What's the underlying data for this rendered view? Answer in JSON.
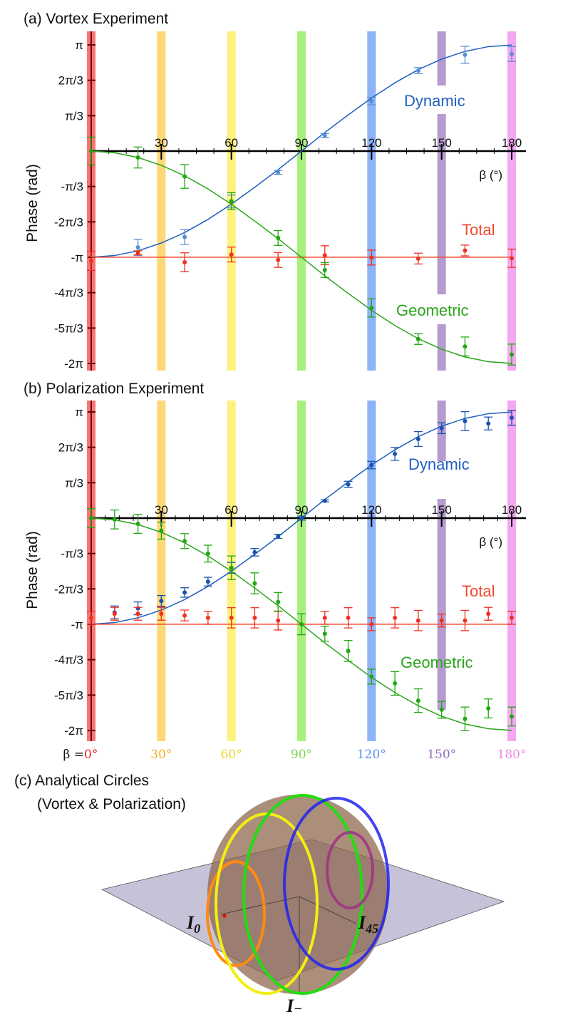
{
  "chart_data": [
    {
      "type": "scatter",
      "title": "(a) Vortex Experiment",
      "xlabel": "β (°)",
      "ylabel": "Phase (rad)",
      "xlim": [
        0,
        180
      ],
      "ylim": [
        -6.2832,
        3.1416
      ],
      "x_ticks": [
        30,
        60,
        90,
        120,
        150,
        180
      ],
      "x_tick_labels": [
        "30",
        "60",
        "90",
        "120",
        "150",
        "180"
      ],
      "minor_tick_step": 7.5,
      "y_ticks": [
        3.1416,
        2.0944,
        1.0472,
        -1.0472,
        -2.0944,
        -3.1416,
        -4.1888,
        -5.236,
        -6.2832
      ],
      "y_tick_labels": [
        "π",
        "2π/3",
        "π/3",
        "-π/3",
        "-2π/3",
        "-π",
        "-4π/3",
        "-5π/3",
        "-2π"
      ],
      "series": [
        {
          "name": "Dynamic",
          "color": "#5a8ed2",
          "line_color": "#1f5fbf",
          "x": [
            20,
            40,
            60,
            80,
            100,
            120,
            140,
            160,
            180
          ],
          "y": [
            -2.85,
            -2.54,
            -1.49,
            -0.63,
            0.46,
            1.48,
            2.38,
            2.85,
            2.87
          ],
          "err": [
            0.24,
            0.22,
            0.19,
            0.06,
            0.06,
            0.11,
            0.09,
            0.25,
            0.22
          ]
        },
        {
          "name": "Total",
          "color": "#f03020",
          "line_color": "#f04a30",
          "x": [
            0,
            20,
            40,
            60,
            80,
            100,
            120,
            140,
            160,
            180
          ],
          "y": [
            -3.25,
            -3.01,
            -3.29,
            -3.06,
            -3.22,
            -3.08,
            -3.15,
            -3.18,
            -2.94,
            -3.17
          ],
          "err": [
            0.28,
            0.06,
            0.28,
            0.22,
            0.22,
            0.28,
            0.22,
            0.16,
            0.16,
            0.27
          ]
        },
        {
          "name": "Geometric",
          "color": "#1fa80f",
          "line_color": "#2aa51a",
          "x": [
            0,
            20,
            40,
            60,
            80,
            100,
            120,
            140,
            160,
            180
          ],
          "y": [
            0,
            -0.19,
            -0.75,
            -1.48,
            -2.57,
            -3.52,
            -4.64,
            -5.56,
            -5.78,
            -6.02
          ],
          "err": [
            0.41,
            0.31,
            0.35,
            0.25,
            0.22,
            0.22,
            0.27,
            0.16,
            0.28,
            0.31
          ]
        }
      ],
      "fit_curves": {
        "x": [
          0,
          10,
          20,
          30,
          40,
          50,
          60,
          70,
          80,
          90,
          100,
          110,
          120,
          130,
          140,
          150,
          160,
          170,
          180
        ],
        "Dynamic": [
          -3.14,
          -3.09,
          -2.95,
          -2.72,
          -2.41,
          -2.02,
          -1.57,
          -1.07,
          -0.55,
          0,
          0.55,
          1.07,
          1.57,
          2.02,
          2.41,
          2.72,
          2.95,
          3.09,
          3.14
        ],
        "Total": [
          -3.14,
          -3.14,
          -3.14,
          -3.14,
          -3.14,
          -3.14,
          -3.14,
          -3.14,
          -3.14,
          -3.14,
          -3.14,
          -3.14,
          -3.14,
          -3.14,
          -3.14,
          -3.14,
          -3.14,
          -3.14,
          -3.14
        ],
        "Geometric": [
          0,
          -0.05,
          -0.19,
          -0.42,
          -0.73,
          -1.12,
          -1.57,
          -2.07,
          -2.59,
          -3.14,
          -3.69,
          -4.21,
          -4.71,
          -5.16,
          -5.55,
          -5.86,
          -6.09,
          -6.23,
          -6.28
        ]
      }
    },
    {
      "type": "scatter",
      "title": "(b) Polarization Experiment",
      "xlabel": "β (°)",
      "ylabel": "Phase (rad)",
      "xlim": [
        0,
        180
      ],
      "ylim": [
        -6.2832,
        3.1416
      ],
      "x_ticks": [
        30,
        60,
        90,
        120,
        150,
        180
      ],
      "x_tick_labels": [
        "30",
        "60",
        "90",
        "120",
        "150",
        "180"
      ],
      "minor_tick_step": 6,
      "y_ticks": [
        3.1416,
        2.0944,
        1.0472,
        -1.0472,
        -2.0944,
        -3.1416,
        -4.1888,
        -5.236,
        -6.2832
      ],
      "y_tick_labels": [
        "π",
        "2π/3",
        "π/3",
        "-π/3",
        "-2π/3",
        "-π",
        "-4π/3",
        "-5π/3",
        "-2π"
      ],
      "series": [
        {
          "name": "Dynamic",
          "color": "#1a52ad",
          "line_color": "#1f5fbf",
          "x": [
            10,
            20,
            30,
            40,
            50,
            60,
            70,
            80,
            90,
            100,
            110,
            120,
            130,
            140,
            150,
            160,
            170,
            180
          ],
          "y": [
            -2.79,
            -2.67,
            -2.45,
            -2.2,
            -1.88,
            -1.47,
            -1.01,
            -0.54,
            0,
            0.51,
            1.0,
            1.57,
            1.9,
            2.34,
            2.66,
            2.87,
            2.8,
            2.97
          ],
          "err": [
            0.19,
            0.19,
            0.16,
            0.14,
            0.13,
            0.16,
            0.11,
            0.06,
            0.06,
            0.03,
            0.09,
            0.11,
            0.19,
            0.22,
            0.16,
            0.28,
            0.19,
            0.22
          ]
        },
        {
          "name": "Total",
          "color": "#f03020",
          "line_color": "#f04a30",
          "x": [
            0,
            10,
            20,
            30,
            40,
            50,
            60,
            70,
            80,
            100,
            110,
            120,
            130,
            140,
            150,
            160,
            170,
            180
          ],
          "y": [
            -2.95,
            -2.83,
            -2.83,
            -2.83,
            -2.88,
            -2.95,
            -2.95,
            -2.95,
            -3.03,
            -2.95,
            -2.95,
            -3.14,
            -2.95,
            -3.03,
            -3.03,
            -3.03,
            -2.83,
            -2.95
          ],
          "err": [
            0.19,
            0.19,
            0.19,
            0.19,
            0.16,
            0.19,
            0.3,
            0.3,
            0.28,
            0.19,
            0.3,
            0.19,
            0.3,
            0.3,
            0.19,
            0.3,
            0.19,
            0.19
          ]
        },
        {
          "name": "Geometric",
          "color": "#1fa80f",
          "line_color": "#2aa51a",
          "x": [
            0,
            10,
            20,
            30,
            40,
            50,
            60,
            70,
            80,
            90,
            100,
            110,
            120,
            130,
            140,
            150,
            160,
            170,
            180
          ],
          "y": [
            0,
            -0.04,
            -0.17,
            -0.37,
            -0.68,
            -1.05,
            -1.47,
            -1.93,
            -2.48,
            -3.14,
            -3.42,
            -3.93,
            -4.69,
            -4.89,
            -5.4,
            -5.67,
            -5.94,
            -5.63,
            -5.87
          ],
          "err": [
            0.28,
            0.28,
            0.28,
            0.25,
            0.22,
            0.25,
            0.35,
            0.31,
            0.28,
            0.31,
            0.22,
            0.31,
            0.22,
            0.35,
            0.35,
            0.25,
            0.35,
            0.28,
            0.28
          ]
        }
      ],
      "fit_curves": {
        "x": [
          0,
          10,
          20,
          30,
          40,
          50,
          60,
          70,
          80,
          90,
          100,
          110,
          120,
          130,
          140,
          150,
          160,
          170,
          180
        ],
        "Dynamic": [
          -3.14,
          -3.09,
          -2.95,
          -2.72,
          -2.41,
          -2.02,
          -1.57,
          -1.07,
          -0.55,
          0,
          0.55,
          1.07,
          1.57,
          2.02,
          2.41,
          2.72,
          2.95,
          3.09,
          3.14
        ],
        "Total": [
          -3.14,
          -3.14,
          -3.14,
          -3.14,
          -3.14,
          -3.14,
          -3.14,
          -3.14,
          -3.14,
          -3.14,
          -3.14,
          -3.14,
          -3.14,
          -3.14,
          -3.14,
          -3.14,
          -3.14,
          -3.14,
          -3.14
        ],
        "Geometric": [
          0,
          -0.05,
          -0.19,
          -0.42,
          -0.73,
          -1.12,
          -1.57,
          -2.07,
          -2.59,
          -3.14,
          -3.69,
          -4.21,
          -4.71,
          -5.16,
          -5.55,
          -5.86,
          -6.09,
          -6.23,
          -6.28
        ]
      }
    }
  ],
  "bands": [
    {
      "beta": 0,
      "label": "0°",
      "color": "#f87575",
      "text_color": "#e02020"
    },
    {
      "beta": 30,
      "label": "30°",
      "color": "#fcd878",
      "text_color": "#f0b020"
    },
    {
      "beta": 60,
      "label": "60°",
      "color": "#fdf27c",
      "text_color": "#e8d830"
    },
    {
      "beta": 90,
      "label": "90°",
      "color": "#a8f07c",
      "text_color": "#7ed650"
    },
    {
      "beta": 120,
      "label": "120°",
      "color": "#8db2f8",
      "text_color": "#5a8ef0"
    },
    {
      "beta": 150,
      "label": "150°",
      "color": "#b59bd0",
      "text_color": "#9068b8"
    },
    {
      "beta": 180,
      "label": "180°",
      "color": "#f5a8f2",
      "text_color": "#ee88e8"
    }
  ],
  "beta_prefix": "β = ",
  "panel_c": {
    "title_line1": "(c) Analytical Circles",
    "title_line2": "(Vortex & Polarization)",
    "label_i0": "I",
    "label_i0_sub": "0",
    "label_i45": "I",
    "label_i45_sub": "45",
    "label_iminus": "I",
    "label_iminus_sub": "−"
  }
}
